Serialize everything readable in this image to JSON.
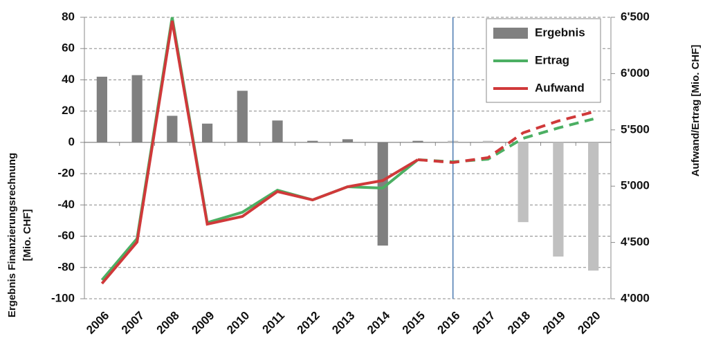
{
  "chart_data": {
    "type": "bar-line",
    "categories": [
      "2006",
      "2007",
      "2008",
      "2009",
      "2010",
      "2011",
      "2012",
      "2013",
      "2014",
      "2015",
      "2016",
      "2017",
      "2018",
      "2019",
      "2020"
    ],
    "y_label": "Ergebnis Finanzierungsrechnung",
    "y_label_unit": "[Mio. CHF]",
    "y2_label": "Aufwand/Ertrag  [Mio. CHF]",
    "ylim": [
      -100,
      80
    ],
    "yticks": [
      -100,
      -80,
      -60,
      -40,
      -20,
      0,
      20,
      40,
      60,
      80
    ],
    "y2lim": [
      4000,
      6500
    ],
    "y2ticks": [
      {
        "value": 4000,
        "label": "4'000"
      },
      {
        "value": 4500,
        "label": "4'500"
      },
      {
        "value": 5000,
        "label": "5'000"
      },
      {
        "value": 5500,
        "label": "5'500"
      },
      {
        "value": 6000,
        "label": "6'000"
      },
      {
        "value": 6500,
        "label": "6'500"
      }
    ],
    "grid": true,
    "legend": "upper right",
    "vline": "2016",
    "vline_color": "#4a7ab0",
    "series": [
      {
        "name": "Ergebnis",
        "type": "bar",
        "color": "#808080",
        "forecast_color": "#c0c0c0",
        "values": [
          42,
          43,
          17,
          12,
          33,
          14,
          1,
          2,
          -66,
          1,
          1,
          1,
          -51,
          -73,
          -82
        ]
      },
      {
        "name": "Ertrag",
        "type": "line",
        "axis": "y2",
        "color": "#4caf63",
        "values": [
          4166,
          4534,
          6500,
          4676,
          4768,
          4964,
          4878,
          4995,
          4983,
          5235,
          5216,
          5240,
          5425,
          5517,
          5597
        ]
      },
      {
        "name": "Aufwand",
        "type": "line",
        "axis": "y2",
        "color": "#d0393a",
        "values": [
          4135,
          4504,
          6469,
          4663,
          4731,
          4952,
          4878,
          4995,
          5050,
          5235,
          5210,
          5253,
          5474,
          5579,
          5659
        ]
      }
    ]
  }
}
